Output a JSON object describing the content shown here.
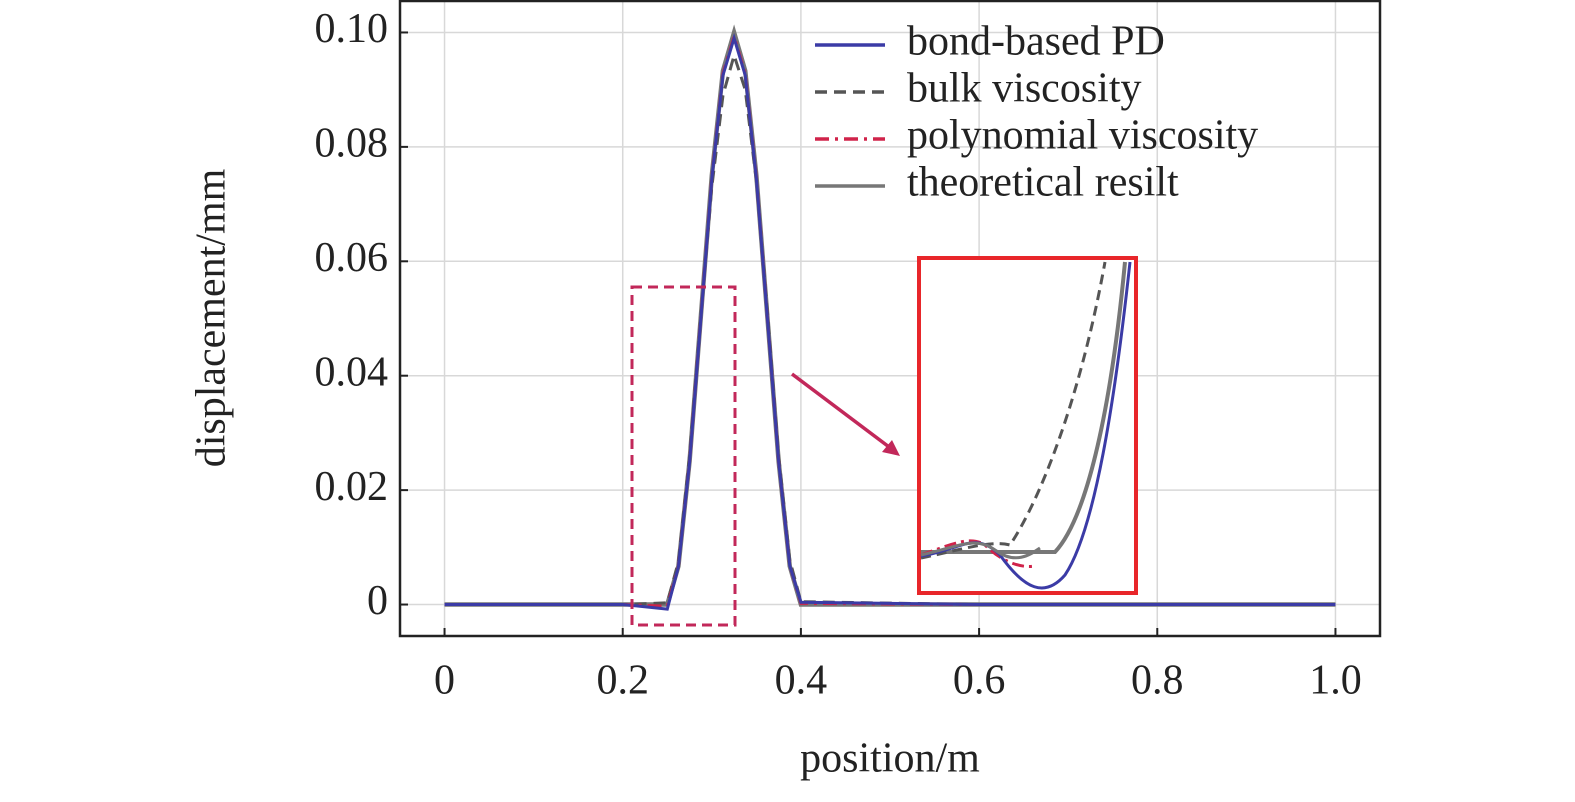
{
  "chart_data": {
    "type": "line",
    "x_label": "position/m",
    "y_label": "displacement/mm",
    "x": [
      0,
      0.2,
      0.25,
      0.2625,
      0.275,
      0.2875,
      0.3,
      0.3125,
      0.325,
      0.3375,
      0.35,
      0.3625,
      0.375,
      0.3875,
      0.4,
      0.6,
      0.8,
      1.0
    ],
    "series": [
      {
        "name": "bond-based PD",
        "color": "#3b3ba6",
        "linestyle": "solid",
        "values": [
          0,
          0,
          -0.0008,
          0.0066,
          0.0248,
          0.0496,
          0.0744,
          0.0925,
          0.099,
          0.0925,
          0.0745,
          0.0498,
          0.025,
          0.0068,
          0.0004,
          0,
          0,
          0
        ]
      },
      {
        "name": "bulk viscosity",
        "color": "#555555",
        "linestyle": "dashed",
        "values": [
          0,
          0,
          0.0003,
          0.0075,
          0.026,
          0.05,
          0.073,
          0.089,
          0.096,
          0.09,
          0.074,
          0.051,
          0.026,
          0.0078,
          0.0005,
          0,
          0,
          0
        ]
      },
      {
        "name": "polynomial viscosity",
        "color": "#d0234a",
        "linestyle": "dashdot",
        "values": [
          0,
          0,
          -0.0003,
          0.0067,
          0.0249,
          0.0498,
          0.0746,
          0.0928,
          0.0993,
          0.0928,
          0.0747,
          0.0499,
          0.025,
          0.0068,
          0.0002,
          0,
          0,
          0
        ]
      },
      {
        "name": "theoretical resilt",
        "color": "#777777",
        "linestyle": "solid",
        "values": [
          0,
          0,
          0,
          0.0067,
          0.025,
          0.05,
          0.075,
          0.0933,
          0.1,
          0.0933,
          0.075,
          0.05,
          0.025,
          0.0067,
          0,
          0,
          0,
          0
        ]
      }
    ],
    "xlim": [
      -0.05,
      1.05
    ],
    "ylim": [
      -0.0055,
      0.1055
    ],
    "xticks": [
      0,
      0.2,
      0.4,
      0.6,
      0.8,
      {
        "value": 1,
        "label": "1.0"
      }
    ],
    "yticks": [
      0,
      {
        "value": 0.02,
        "label": "0.02"
      },
      {
        "value": 0.04,
        "label": "0.04"
      },
      {
        "value": 0.06,
        "label": "0.06"
      },
      {
        "value": 0.08,
        "label": "0.08"
      },
      {
        "value": 0.1,
        "label": "0.10"
      }
    ],
    "grid": true,
    "legend": "upper right"
  }
}
